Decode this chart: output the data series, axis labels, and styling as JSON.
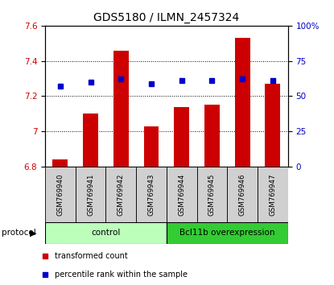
{
  "title": "GDS5180 / ILMN_2457324",
  "samples": [
    "GSM769940",
    "GSM769941",
    "GSM769942",
    "GSM769943",
    "GSM769944",
    "GSM769945",
    "GSM769946",
    "GSM769947"
  ],
  "transformed_counts": [
    6.84,
    7.1,
    7.46,
    7.03,
    7.14,
    7.15,
    7.53,
    7.27
  ],
  "percentile_ranks": [
    57,
    60,
    62,
    59,
    61,
    61,
    62,
    61
  ],
  "ylim_left": [
    6.8,
    7.6
  ],
  "ylim_right": [
    0,
    100
  ],
  "yticks_left": [
    6.8,
    7.0,
    7.2,
    7.4,
    7.6
  ],
  "yticks_right": [
    0,
    25,
    50,
    75,
    100
  ],
  "bar_color": "#cc0000",
  "dot_color": "#0000cc",
  "bar_bottom": 6.8,
  "groups": [
    {
      "label": "control",
      "start": 0,
      "end": 4,
      "color": "#bbffbb"
    },
    {
      "label": "Bcl11b overexpression",
      "start": 4,
      "end": 8,
      "color": "#33cc33"
    }
  ],
  "protocol_label": "protocol",
  "legend_items": [
    {
      "color": "#cc0000",
      "label": "transformed count"
    },
    {
      "color": "#0000cc",
      "label": "percentile rank within the sample"
    }
  ],
  "background_color": "#ffffff",
  "plot_bg_color": "#ffffff",
  "title_fontsize": 10,
  "tick_fontsize": 7.5,
  "label_fontsize": 7.5,
  "sample_box_color": "#d0d0d0",
  "right_ytick_labels": [
    "0",
    "25",
    "50",
    "75",
    "100%"
  ]
}
